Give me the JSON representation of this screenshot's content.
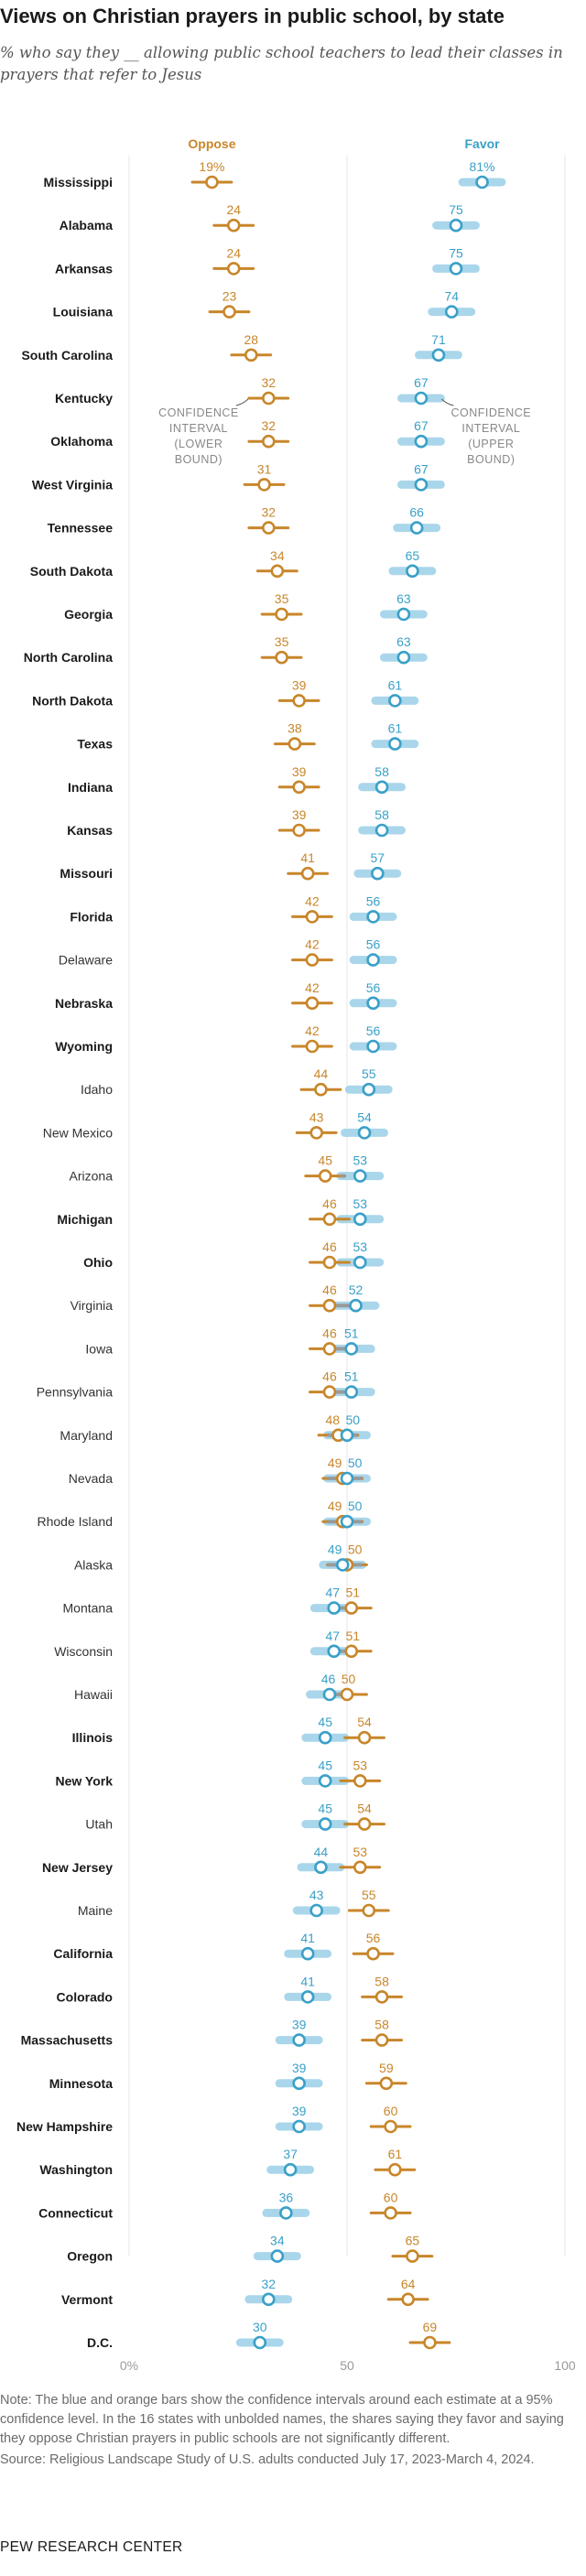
{
  "title": "Views on Christian prayers in public school, by state",
  "subtitle": "% who say they __ allowing public school teachers to lead their classes in prayers that refer to Jesus",
  "chart_data": {
    "type": "dot",
    "title": "Views on Christian prayers in public school, by state",
    "series_labels": {
      "oppose": "Oppose",
      "favor": "Favor"
    },
    "colors": {
      "oppose": "#c8862a",
      "favor": "#3aa0c8",
      "oppose_bar": "#c8862a",
      "favor_bar": "#a9d6ea",
      "gray": "#9a9a9a"
    },
    "x_ticks": [
      "0%",
      "50",
      "100"
    ],
    "x_tick_values": [
      0,
      50,
      100
    ],
    "xlim": [
      0,
      100
    ],
    "annotations": {
      "lower": [
        "CONFIDENCE",
        "INTERVAL",
        "(LOWER",
        "BOUND)"
      ],
      "upper": [
        "CONFIDENCE",
        "INTERVAL",
        "(UPPER",
        "BOUND)"
      ]
    },
    "rows": [
      {
        "state": "Mississippi",
        "bold": true,
        "oppose": 19,
        "favor": 81,
        "oppose_label": "19%",
        "favor_label": "81%"
      },
      {
        "state": "Alabama",
        "bold": true,
        "oppose": 24,
        "favor": 75
      },
      {
        "state": "Arkansas",
        "bold": true,
        "oppose": 24,
        "favor": 75
      },
      {
        "state": "Louisiana",
        "bold": true,
        "oppose": 23,
        "favor": 74
      },
      {
        "state": "South Carolina",
        "bold": true,
        "oppose": 28,
        "favor": 71
      },
      {
        "state": "Kentucky",
        "bold": true,
        "oppose": 32,
        "favor": 67
      },
      {
        "state": "Oklahoma",
        "bold": true,
        "oppose": 32,
        "favor": 67
      },
      {
        "state": "West Virginia",
        "bold": true,
        "oppose": 31,
        "favor": 67
      },
      {
        "state": "Tennessee",
        "bold": true,
        "oppose": 32,
        "favor": 66
      },
      {
        "state": "South Dakota",
        "bold": true,
        "oppose": 34,
        "favor": 65
      },
      {
        "state": "Georgia",
        "bold": true,
        "oppose": 35,
        "favor": 63
      },
      {
        "state": "North Carolina",
        "bold": true,
        "oppose": 35,
        "favor": 63
      },
      {
        "state": "North Dakota",
        "bold": true,
        "oppose": 39,
        "favor": 61
      },
      {
        "state": "Texas",
        "bold": true,
        "oppose": 38,
        "favor": 61
      },
      {
        "state": "Indiana",
        "bold": true,
        "oppose": 39,
        "favor": 58
      },
      {
        "state": "Kansas",
        "bold": true,
        "oppose": 39,
        "favor": 58
      },
      {
        "state": "Missouri",
        "bold": true,
        "oppose": 41,
        "favor": 57
      },
      {
        "state": "Florida",
        "bold": true,
        "oppose": 42,
        "favor": 56
      },
      {
        "state": "Delaware",
        "bold": false,
        "oppose": 42,
        "favor": 56
      },
      {
        "state": "Nebraska",
        "bold": true,
        "oppose": 42,
        "favor": 56
      },
      {
        "state": "Wyoming",
        "bold": true,
        "oppose": 42,
        "favor": 56
      },
      {
        "state": "Idaho",
        "bold": false,
        "oppose": 44,
        "favor": 55
      },
      {
        "state": "New Mexico",
        "bold": false,
        "oppose": 43,
        "favor": 54
      },
      {
        "state": "Arizona",
        "bold": false,
        "oppose": 45,
        "favor": 53
      },
      {
        "state": "Michigan",
        "bold": true,
        "oppose": 46,
        "favor": 53
      },
      {
        "state": "Ohio",
        "bold": true,
        "oppose": 46,
        "favor": 53
      },
      {
        "state": "Virginia",
        "bold": false,
        "oppose": 46,
        "favor": 52
      },
      {
        "state": "Iowa",
        "bold": false,
        "oppose": 46,
        "favor": 51
      },
      {
        "state": "Pennsylvania",
        "bold": false,
        "oppose": 46,
        "favor": 51
      },
      {
        "state": "Maryland",
        "bold": false,
        "oppose": 48,
        "favor": 50
      },
      {
        "state": "Nevada",
        "bold": false,
        "oppose": 49,
        "favor": 50
      },
      {
        "state": "Rhode Island",
        "bold": false,
        "oppose": 49,
        "favor": 50
      },
      {
        "state": "Alaska",
        "bold": false,
        "oppose": 50,
        "favor": 49
      },
      {
        "state": "Montana",
        "bold": false,
        "oppose": 51,
        "favor": 47
      },
      {
        "state": "Wisconsin",
        "bold": false,
        "oppose": 51,
        "favor": 47
      },
      {
        "state": "Hawaii",
        "bold": false,
        "oppose": 50,
        "favor": 46
      },
      {
        "state": "Illinois",
        "bold": true,
        "oppose": 54,
        "favor": 45
      },
      {
        "state": "New York",
        "bold": true,
        "oppose": 53,
        "favor": 45
      },
      {
        "state": "Utah",
        "bold": false,
        "oppose": 54,
        "favor": 45
      },
      {
        "state": "New Jersey",
        "bold": true,
        "oppose": 53,
        "favor": 44
      },
      {
        "state": "Maine",
        "bold": false,
        "oppose": 55,
        "favor": 43
      },
      {
        "state": "California",
        "bold": true,
        "oppose": 56,
        "favor": 41
      },
      {
        "state": "Colorado",
        "bold": true,
        "oppose": 58,
        "favor": 41
      },
      {
        "state": "Massachusetts",
        "bold": true,
        "oppose": 58,
        "favor": 39
      },
      {
        "state": "Minnesota",
        "bold": true,
        "oppose": 59,
        "favor": 39
      },
      {
        "state": "New Hampshire",
        "bold": true,
        "oppose": 60,
        "favor": 39
      },
      {
        "state": "Washington",
        "bold": true,
        "oppose": 61,
        "favor": 37
      },
      {
        "state": "Connecticut",
        "bold": true,
        "oppose": 60,
        "favor": 36
      },
      {
        "state": "Oregon",
        "bold": true,
        "oppose": 65,
        "favor": 34
      },
      {
        "state": "Vermont",
        "bold": true,
        "oppose": 64,
        "favor": 32
      },
      {
        "state": "D.C.",
        "bold": true,
        "oppose": 69,
        "favor": 30
      }
    ]
  },
  "footer": {
    "note": "Note: The blue and orange bars show the confidence intervals around each estimate at a 95% confidence level. In the 16 states with unbolded names, the shares saying they favor and saying they oppose Christian prayers in public schools are not significantly different.",
    "source": "Source: Religious Landscape Study of U.S. adults conducted July 17, 2023-March 4, 2024.",
    "brand": "PEW RESEARCH CENTER"
  }
}
